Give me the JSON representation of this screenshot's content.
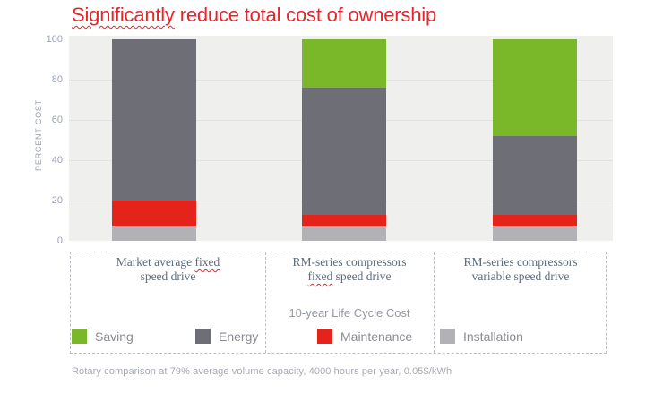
{
  "title": {
    "squiggle": "Significantly",
    "rest": " reduce total cost of ownership",
    "color": "#e8232a"
  },
  "y_axis": {
    "label": "PERCENT COST"
  },
  "categories": [
    {
      "line1": {
        "pre": "Market average ",
        "wavy": "fixed",
        "post": ""
      },
      "line2": {
        "pre": "speed drive",
        "wavy": "",
        "post": ""
      }
    },
    {
      "line1": {
        "pre": "RM-series compressors",
        "wavy": "",
        "post": ""
      },
      "line2": {
        "pre": "",
        "wavy": "fixed",
        "post": " speed drive"
      }
    },
    {
      "line1": {
        "pre": "RM-series compressors",
        "wavy": "",
        "post": ""
      },
      "line2": {
        "pre": "variable speed drive",
        "wavy": "",
        "post": ""
      }
    }
  ],
  "annotation": {
    "text": "10-year Life Cycle Cost"
  },
  "legend": {
    "items": [
      {
        "label": "Saving",
        "color": "#7ab829"
      },
      {
        "label": "Energy",
        "color": "#6e6e76"
      },
      {
        "label": "Maintenance",
        "color": "#e5231b"
      },
      {
        "label": "Installation",
        "color": "#b2b1b6"
      }
    ]
  },
  "footnote": {
    "text": "Rotary comparison at 79% average volume capacity, 4000 hours per year, 0.05$/kWh"
  },
  "chart_data": {
    "type": "bar",
    "stacked": true,
    "title": "Significantly reduce total cost of ownership",
    "categories": [
      "Market average fixed speed drive",
      "RM-series compressors fixed speed drive",
      "RM-series compressors variable speed drive"
    ],
    "series": [
      {
        "name": "Installation",
        "color": "#b2b1b6",
        "values": [
          7,
          7,
          7
        ]
      },
      {
        "name": "Maintenance",
        "color": "#e5231b",
        "values": [
          13,
          6,
          6
        ]
      },
      {
        "name": "Energy",
        "color": "#6e6e76",
        "values": [
          80,
          63,
          39
        ]
      },
      {
        "name": "Saving",
        "color": "#7ab829",
        "values": [
          0,
          24,
          48
        ]
      }
    ],
    "xlabel": "",
    "ylabel": "PERCENT COST",
    "ylim": [
      0,
      100
    ],
    "yticks": [
      0,
      20,
      40,
      60,
      80,
      100
    ],
    "grid": true,
    "legend_position": "bottom",
    "annotation": "10-year Life Cycle Cost",
    "footnote": "Rotary comparison at 79% average volume capacity, 4000 hours per year, 0.05$/kWh"
  }
}
